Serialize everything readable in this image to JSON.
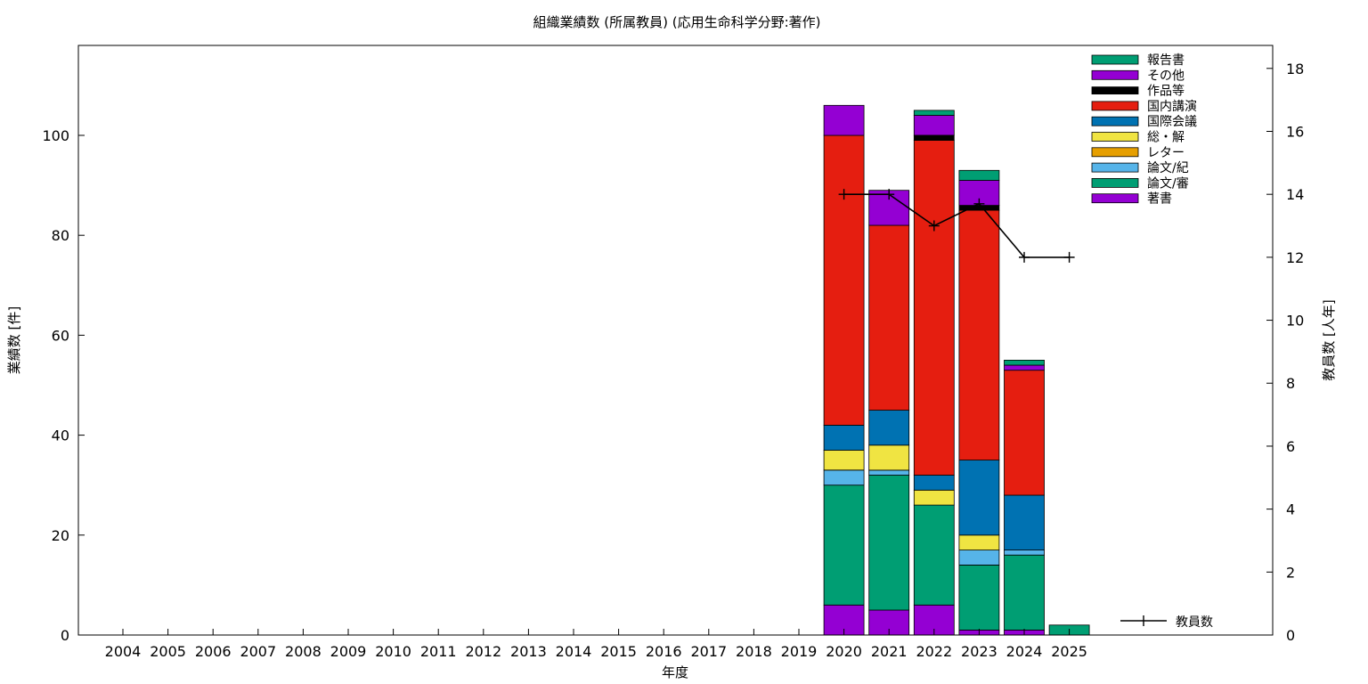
{
  "chart_data": {
    "type": "bar",
    "stacked": true,
    "title": "組織業績数 (所属教員) (応用生命科学分野:著作)",
    "xlabel": "年度",
    "ylabel": "業績数 [件]",
    "y2label": "教員数 [人年]",
    "ylim": [
      0,
      118
    ],
    "y2lim": [
      0,
      18.73
    ],
    "yticks": [
      0,
      20,
      40,
      60,
      80,
      100
    ],
    "y2ticks": [
      0,
      2,
      4,
      6,
      8,
      10,
      12,
      14,
      16,
      18
    ],
    "grid": false,
    "legend_position": "top-right",
    "categories": [
      "2004",
      "2005",
      "2006",
      "2007",
      "2008",
      "2009",
      "2010",
      "2011",
      "2012",
      "2013",
      "2014",
      "2015",
      "2016",
      "2017",
      "2018",
      "2019",
      "2020",
      "2021",
      "2022",
      "2023",
      "2024",
      "2025"
    ],
    "series": [
      {
        "name": "著書",
        "color": "#9400d3",
        "values": [
          0,
          0,
          0,
          0,
          0,
          0,
          0,
          0,
          0,
          0,
          0,
          0,
          0,
          0,
          0,
          0,
          6,
          5,
          6,
          1,
          1,
          0
        ]
      },
      {
        "name": "論文/審",
        "color": "#009e73",
        "values": [
          0,
          0,
          0,
          0,
          0,
          0,
          0,
          0,
          0,
          0,
          0,
          0,
          0,
          0,
          0,
          0,
          24,
          27,
          20,
          13,
          15,
          2
        ]
      },
      {
        "name": "論文/紀",
        "color": "#56b4e9",
        "values": [
          0,
          0,
          0,
          0,
          0,
          0,
          0,
          0,
          0,
          0,
          0,
          0,
          0,
          0,
          0,
          0,
          3,
          1,
          0,
          3,
          1,
          0
        ]
      },
      {
        "name": "レター",
        "color": "#e69f00",
        "values": [
          0,
          0,
          0,
          0,
          0,
          0,
          0,
          0,
          0,
          0,
          0,
          0,
          0,
          0,
          0,
          0,
          0,
          0,
          0,
          0,
          0,
          0
        ]
      },
      {
        "name": "総・解",
        "color": "#f0e442",
        "values": [
          0,
          0,
          0,
          0,
          0,
          0,
          0,
          0,
          0,
          0,
          0,
          0,
          0,
          0,
          0,
          0,
          4,
          5,
          3,
          3,
          0,
          0
        ]
      },
      {
        "name": "国際会議",
        "color": "#0072b2",
        "values": [
          0,
          0,
          0,
          0,
          0,
          0,
          0,
          0,
          0,
          0,
          0,
          0,
          0,
          0,
          0,
          0,
          5,
          7,
          3,
          15,
          11,
          0
        ]
      },
      {
        "name": "国内講演",
        "color": "#e51e10",
        "values": [
          0,
          0,
          0,
          0,
          0,
          0,
          0,
          0,
          0,
          0,
          0,
          0,
          0,
          0,
          0,
          0,
          58,
          37,
          67,
          50,
          25,
          0
        ]
      },
      {
        "name": "作品等",
        "color": "#000000",
        "values": [
          0,
          0,
          0,
          0,
          0,
          0,
          0,
          0,
          0,
          0,
          0,
          0,
          0,
          0,
          0,
          0,
          0,
          0,
          1,
          1,
          0,
          0
        ]
      },
      {
        "name": "その他",
        "color": "#9400d3",
        "values": [
          0,
          0,
          0,
          0,
          0,
          0,
          0,
          0,
          0,
          0,
          0,
          0,
          0,
          0,
          0,
          0,
          6,
          7,
          4,
          5,
          1,
          0
        ]
      },
      {
        "name": "報告書",
        "color": "#009e73",
        "values": [
          0,
          0,
          0,
          0,
          0,
          0,
          0,
          0,
          0,
          0,
          0,
          0,
          0,
          0,
          0,
          0,
          0,
          0,
          1,
          2,
          1,
          0
        ]
      }
    ],
    "line_series": {
      "name": "教員数",
      "axis": "y2",
      "color": "#000000",
      "x": [
        "2020",
        "2021",
        "2022",
        "2023",
        "2024",
        "2025"
      ],
      "values": [
        14,
        14,
        13,
        13.7,
        12,
        12
      ]
    }
  }
}
